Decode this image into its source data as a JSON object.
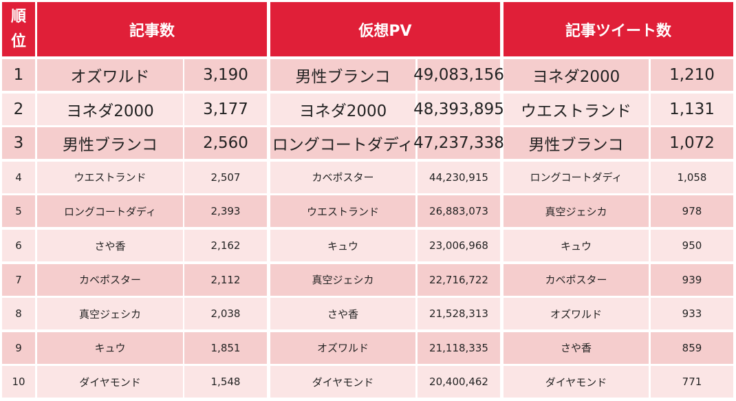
{
  "header": {
    "rank": "順位",
    "groups": [
      "記事数",
      "仮想PV",
      "記事ツイート数"
    ]
  },
  "rows": [
    [
      "1",
      "オズワルド",
      "3,190",
      "男性ブランコ",
      "49,083,156",
      "ヨネダ2000",
      "1,210"
    ],
    [
      "2",
      "ヨネダ2000",
      "3,177",
      "ヨネダ2000",
      "48,393,895",
      "ウエストランド",
      "1,131"
    ],
    [
      "3",
      "男性ブランコ",
      "2,560",
      "ロングコートダディ",
      "47,237,338",
      "男性ブランコ",
      "1,072"
    ],
    [
      "4",
      "ウエストランド",
      "2,507",
      "カベポスター",
      "44,230,915",
      "ロングコートダディ",
      "1,058"
    ],
    [
      "5",
      "ロングコートダディ",
      "2,393",
      "ウエストランド",
      "26,883,073",
      "真空ジェシカ",
      "978"
    ],
    [
      "6",
      "さや香",
      "2,162",
      "キュウ",
      "23,006,968",
      "キュウ",
      "950"
    ],
    [
      "7",
      "カベポスター",
      "2,112",
      "真空ジェシカ",
      "22,716,722",
      "カベポスター",
      "939"
    ],
    [
      "8",
      "真空ジェシカ",
      "2,038",
      "さや香",
      "21,528,313",
      "オズワルド",
      "933"
    ],
    [
      "9",
      "キュウ",
      "1,851",
      "オズワルド",
      "21,118,335",
      "さや香",
      "859"
    ],
    [
      "10",
      "ダイヤモンド",
      "1,548",
      "ダイヤモンド",
      "20,400,462",
      "ダイヤモンド",
      "771"
    ]
  ]
}
